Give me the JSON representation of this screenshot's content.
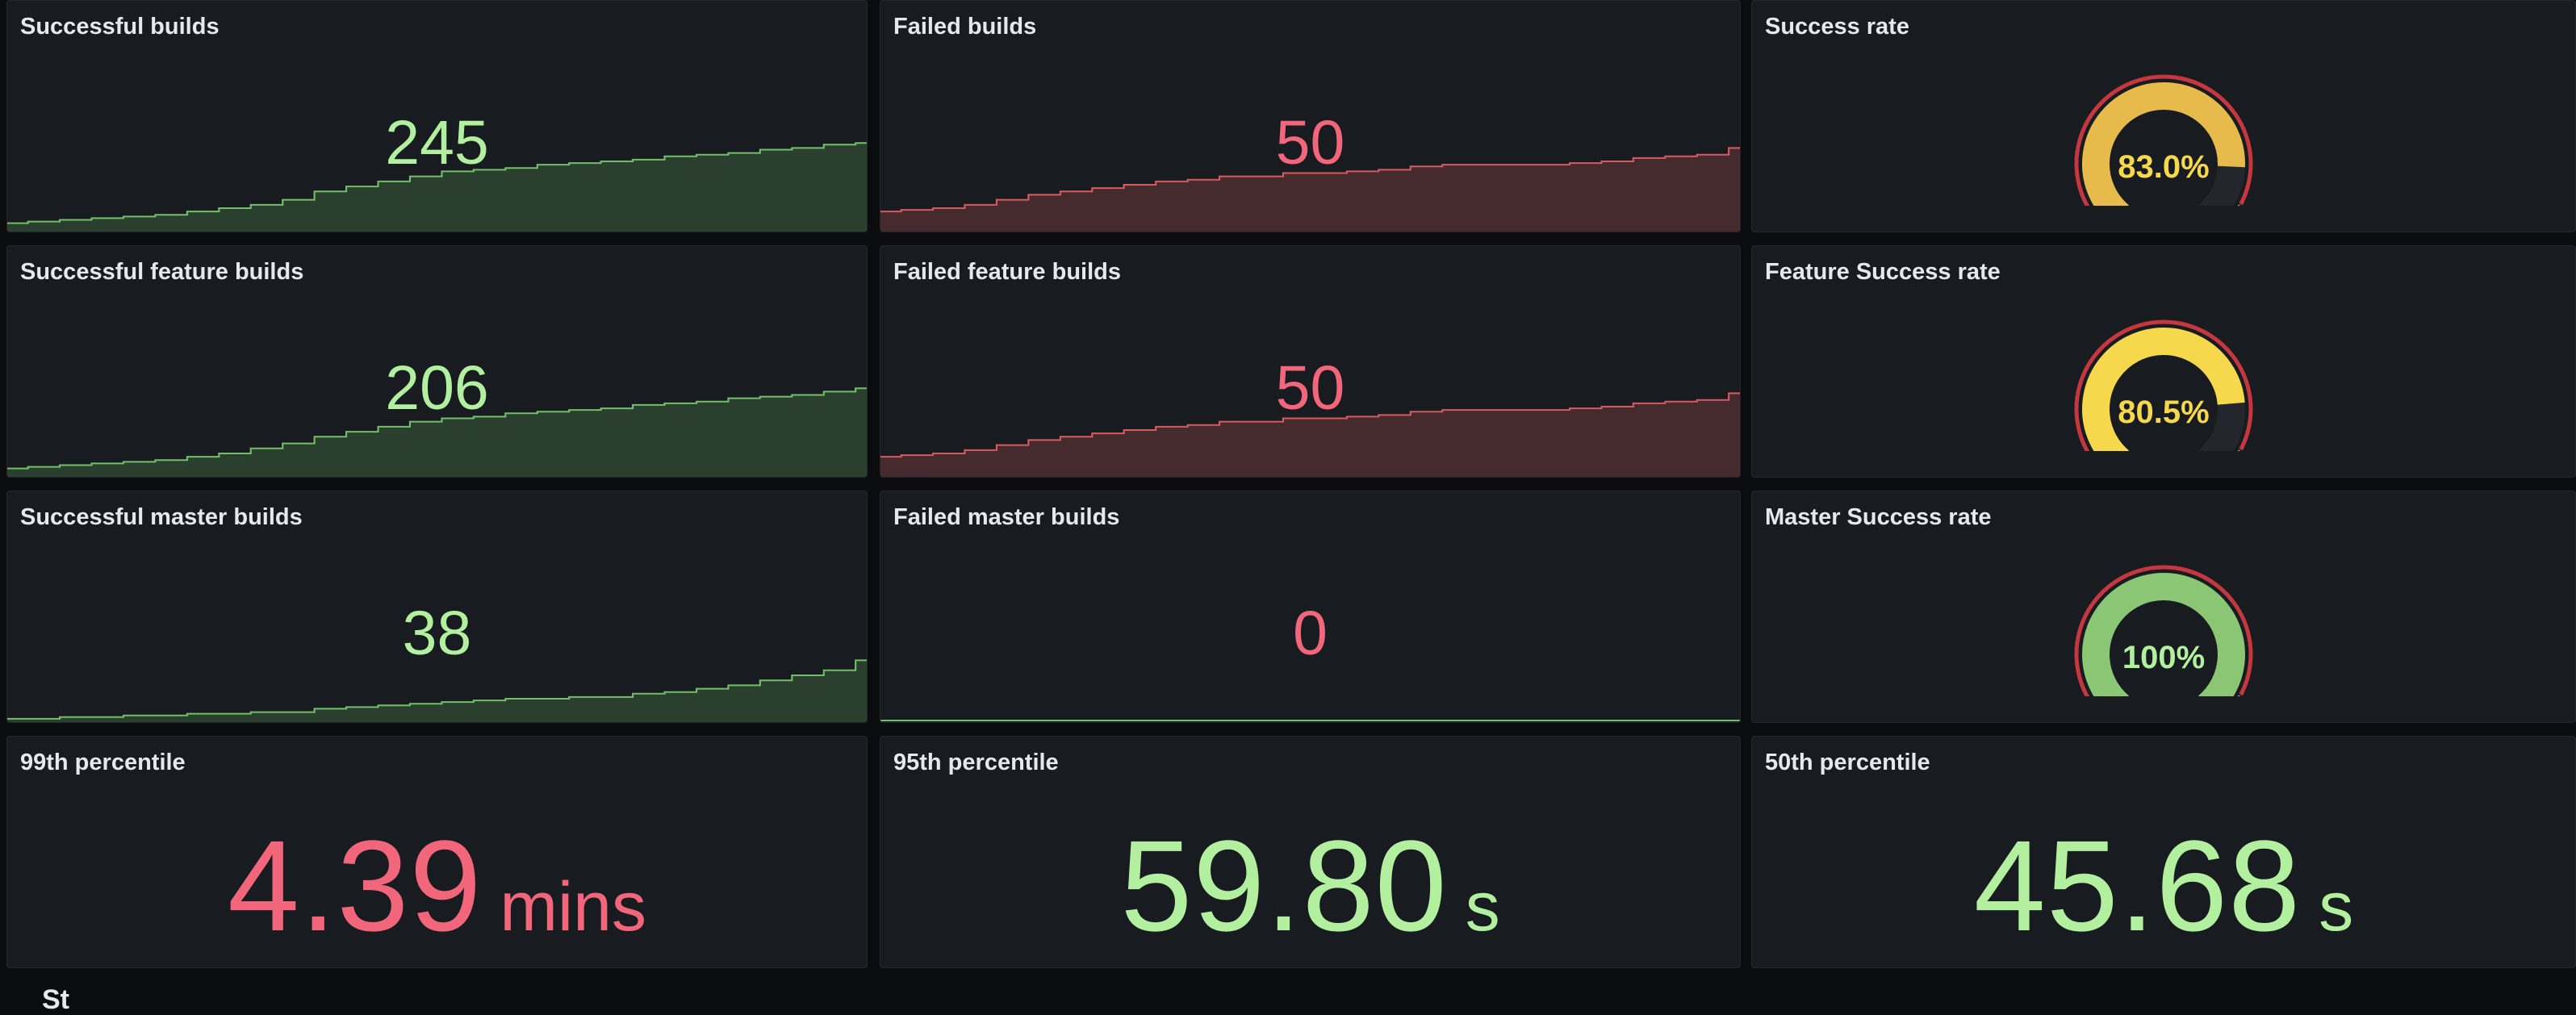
{
  "colors": {
    "green": "#b2f0a0",
    "red": "#f2667c",
    "gauge_yellow": "#f5d84b",
    "gauge_amber": "#e6bb4c",
    "gauge_green": "#8ac674",
    "spark_green_line": "#73bf69",
    "spark_red_line": "#d65a60"
  },
  "panels": {
    "successful_builds": {
      "title": "Successful builds",
      "value": "245",
      "trend": [
        5,
        6,
        7,
        8,
        9,
        10,
        12,
        14,
        16,
        19,
        24,
        27,
        30,
        33,
        36,
        37,
        38,
        40,
        41,
        42,
        43,
        45,
        46,
        47,
        49,
        50,
        52,
        53
      ]
    },
    "failed_builds": {
      "title": "Failed builds",
      "value": "50",
      "trend": [
        12,
        13,
        14,
        16,
        19,
        22,
        24,
        26,
        28,
        30,
        31,
        33,
        33,
        35,
        35,
        36,
        37,
        39,
        40,
        40,
        40,
        40,
        41,
        42,
        44,
        45,
        46,
        50
      ]
    },
    "success_rate": {
      "title": "Success rate",
      "value": "83.0%",
      "percent": 83.0
    },
    "successful_feature_builds": {
      "title": "Successful feature builds",
      "value": "206",
      "trend": [
        5,
        6,
        7,
        8,
        9,
        10,
        12,
        14,
        17,
        20,
        24,
        27,
        30,
        33,
        35,
        36,
        38,
        39,
        40,
        41,
        43,
        44,
        45,
        47,
        48,
        49,
        51,
        53
      ]
    },
    "failed_feature_builds": {
      "title": "Failed feature builds",
      "value": "50",
      "trend": [
        12,
        13,
        14,
        16,
        19,
        22,
        24,
        26,
        28,
        30,
        31,
        33,
        33,
        35,
        35,
        36,
        37,
        39,
        40,
        40,
        40,
        40,
        41,
        42,
        44,
        45,
        46,
        50
      ]
    },
    "feature_success_rate": {
      "title": "Feature Success rate",
      "value": "80.5%",
      "percent": 80.5
    },
    "successful_master_builds": {
      "title": "Successful master builds",
      "value": "38",
      "trend": [
        2,
        2,
        3,
        3,
        4,
        4,
        5,
        5,
        6,
        6,
        8,
        9,
        10,
        11,
        12,
        13,
        14,
        14,
        15,
        15,
        17,
        18,
        20,
        22,
        25,
        28,
        31,
        37
      ]
    },
    "failed_master_builds": {
      "title": "Failed master builds",
      "value": "0"
    },
    "master_success_rate": {
      "title": "Master Success rate",
      "value": "100%",
      "percent": 100
    },
    "p99": {
      "title": "99th percentile",
      "value": "4.39",
      "unit": "mins"
    },
    "p95": {
      "title": "95th percentile",
      "value": "59.80",
      "unit": "s"
    },
    "p50": {
      "title": "50th percentile",
      "value": "45.68",
      "unit": "s"
    }
  },
  "section": {
    "label": "St"
  }
}
